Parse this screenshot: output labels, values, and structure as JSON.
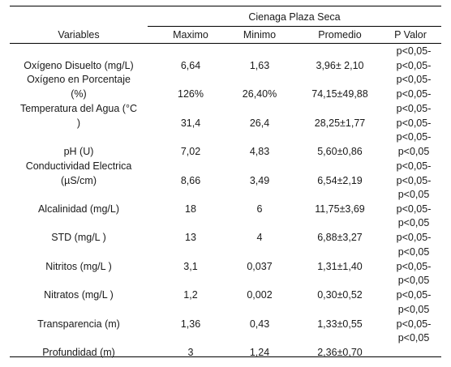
{
  "table": {
    "group_header": "Cienaga Plaza Seca",
    "columns": [
      "Variables",
      "Maximo",
      "Minimo",
      "Promedio",
      "P Valor"
    ],
    "rows": [
      {
        "variable": [
          "Oxígeno Disuelto (mg/L)"
        ],
        "max": "6,64",
        "min": "1,63",
        "mean": "3,96± 2,10",
        "p": [
          "p<0,05-",
          "p<0,05-"
        ]
      },
      {
        "variable": [
          "Oxígeno en Porcentaje",
          "(%)"
        ],
        "max": "126%",
        "min": "26,40%",
        "mean": "74,15±49,88",
        "p": [
          "p<0,05-",
          "p<0,05-"
        ]
      },
      {
        "variable": [
          "Temperatura del Agua (°C",
          ")"
        ],
        "max": "31,4",
        "min": "26,4",
        "mean": "28,25±1,77",
        "p": [
          "p<0,05-",
          "p<0,05-"
        ]
      },
      {
        "variable": [
          "pH (U)"
        ],
        "max": "7,02",
        "min": "4,83",
        "mean": "5,60±0,86",
        "p": [
          "p<0,05-",
          "p<0,05"
        ]
      },
      {
        "variable": [
          "Conductividad Electrica",
          "(µS/cm)"
        ],
        "max": "8,66",
        "min": "3,49",
        "mean": "6,54±2,19",
        "p": [
          "p<0,05-",
          "p<0,05-"
        ]
      },
      {
        "variable": [
          "Alcalinidad (mg/L)"
        ],
        "max": "18",
        "min": "6",
        "mean": "11,75±3,69",
        "p": [
          "p<0,05",
          "p<0,05-"
        ]
      },
      {
        "variable": [
          "STD (mg/L )"
        ],
        "max": "13",
        "min": "4",
        "mean": "6,88±3,27",
        "p": [
          "p<0,05",
          "p<0,05-"
        ]
      },
      {
        "variable": [
          "Nitritos (mg/L )"
        ],
        "max": "3,1",
        "min": "0,037",
        "mean": "1,31±1,40",
        "p": [
          "p<0,05",
          "p<0,05-"
        ]
      },
      {
        "variable": [
          "Nitratos (mg/L )"
        ],
        "max": "1,2",
        "min": "0,002",
        "mean": "0,30±0,52",
        "p": [
          "p<0,05",
          "p<0,05-"
        ]
      },
      {
        "variable": [
          "Transparencia (m)"
        ],
        "max": "1,36",
        "min": "0,43",
        "mean": "1,33±0,55",
        "p": [
          "p<0,05",
          "p<0,05-"
        ]
      },
      {
        "variable": [
          "Profundidad (m)"
        ],
        "max": "3",
        "min": "1,24",
        "mean": "2,36±0,70",
        "p": [
          "p<0,05"
        ]
      }
    ]
  }
}
